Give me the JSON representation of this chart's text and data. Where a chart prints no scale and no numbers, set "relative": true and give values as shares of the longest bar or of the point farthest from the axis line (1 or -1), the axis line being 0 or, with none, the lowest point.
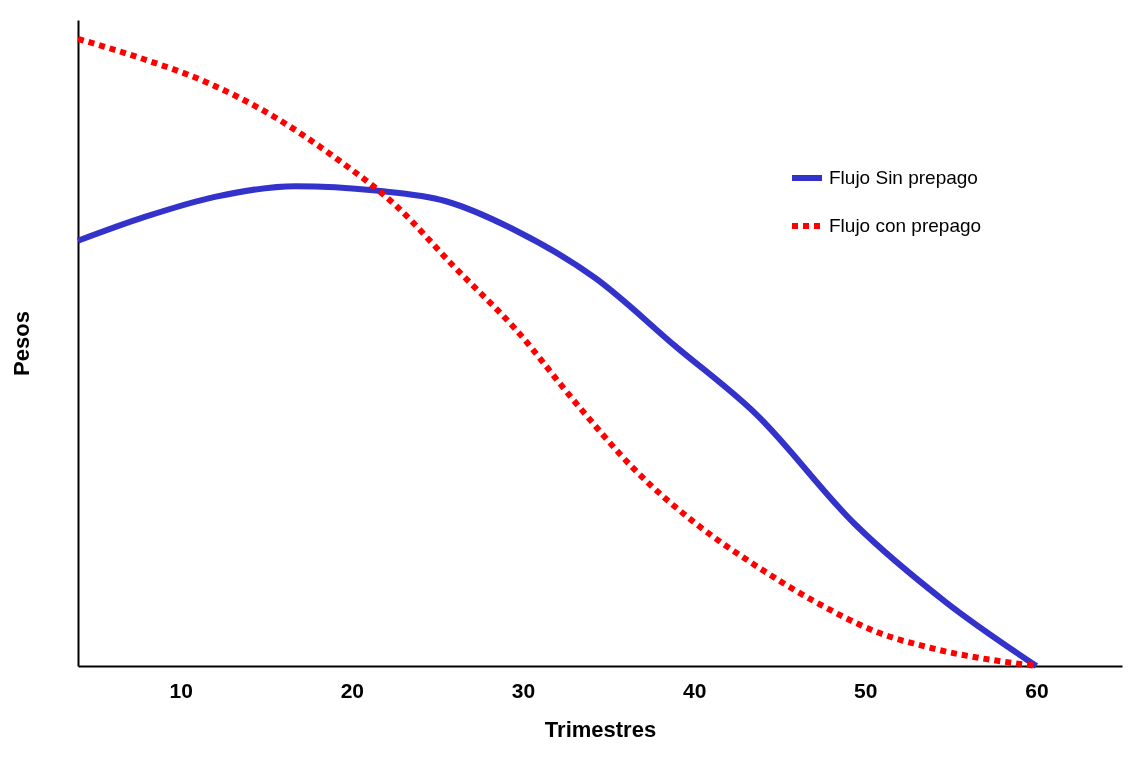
{
  "chart_data": {
    "type": "line",
    "xlabel": "Trimestres",
    "ylabel": "Pesos",
    "relative": true,
    "xlim": [
      4,
      65
    ],
    "xticks": [
      10,
      20,
      30,
      40,
      50,
      60
    ],
    "grid": false,
    "legend": "top right",
    "marker": "none",
    "series": [
      {
        "name": "Flujo Sin prepago",
        "color": "#3333cc",
        "line_style": "solid",
        "x": [
          4.0,
          7.9,
          12.0,
          16.7,
          21.4,
          25.5,
          29.6,
          34.2,
          38.9,
          43.6,
          49.4,
          54.7,
          60.0
        ],
        "values": [
          0.678,
          0.716,
          0.748,
          0.765,
          0.758,
          0.741,
          0.694,
          0.619,
          0.51,
          0.402,
          0.226,
          0.102,
          0
        ]
      },
      {
        "name": "Flujo con prepago",
        "color": "#ff0000",
        "line_style": "dotted",
        "x": [
          4.0,
          7.9,
          11.4,
          15.5,
          19.0,
          22.5,
          26.0,
          29.6,
          33.1,
          36.6,
          40.1,
          43.6,
          47.1,
          50.6,
          54.1,
          60.0
        ],
        "values": [
          1.0,
          0.967,
          0.932,
          0.875,
          0.811,
          0.736,
          0.636,
          0.536,
          0.419,
          0.311,
          0.227,
          0.16,
          0.102,
          0.055,
          0.027,
          0
        ]
      }
    ]
  }
}
